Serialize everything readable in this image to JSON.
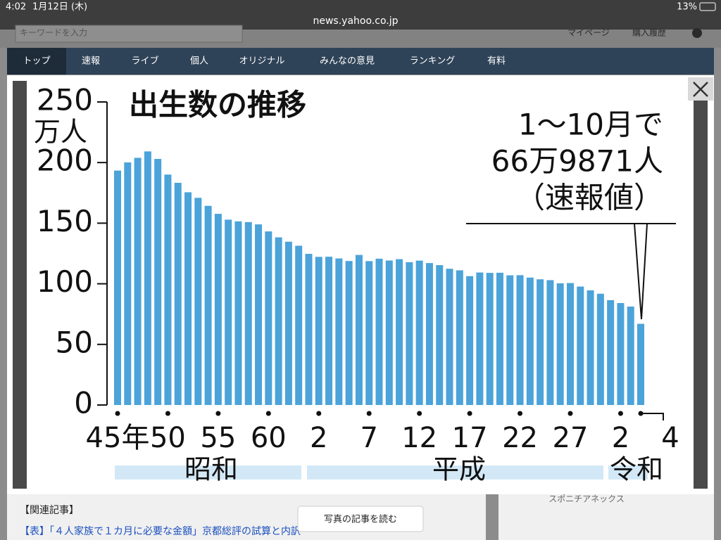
{
  "status_bar": {
    "time": "4:02",
    "date": "1月12日 (木)",
    "url": "news.yahoo.co.jp",
    "battery": "13%"
  },
  "header": {
    "search_placeholder": "キーワードを入力",
    "links": [
      "マイページ",
      "購入履歴"
    ]
  },
  "nav": [
    "トップ",
    "速報",
    "ライブ",
    "個人",
    "オリジナル",
    "みんなの意見",
    "ランキング",
    "有料"
  ],
  "chart_data": {
    "type": "bar",
    "title": "出生数の推移",
    "y_unit": "万人",
    "categories": [
      "45年",
      null,
      null,
      null,
      null,
      "50",
      null,
      null,
      null,
      null,
      "55",
      null,
      null,
      null,
      null,
      "60",
      null,
      null,
      null,
      null,
      "2",
      null,
      null,
      null,
      null,
      "7",
      null,
      null,
      null,
      null,
      "12",
      null,
      null,
      null,
      null,
      "17",
      null,
      null,
      null,
      null,
      "22",
      null,
      null,
      null,
      null,
      "27",
      null,
      null,
      null,
      null,
      "2",
      null,
      "4"
    ],
    "values": [
      193.4,
      200.1,
      203.9,
      209.2,
      203.0,
      190.1,
      183.3,
      175.5,
      170.9,
      164.3,
      157.7,
      152.9,
      151.5,
      150.9,
      149.0,
      143.2,
      138.3,
      134.7,
      131.4,
      124.7,
      122.2,
      122.3,
      120.9,
      118.8,
      123.8,
      118.7,
      120.7,
      119.2,
      120.3,
      117.8,
      119.1,
      117.1,
      115.4,
      112.4,
      111.1,
      106.3,
      109.3,
      109.0,
      109.1,
      107.0,
      107.1,
      105.1,
      103.7,
      103.0,
      100.4,
      100.6,
      97.7,
      94.6,
      91.8,
      86.5,
      84.1,
      81.2,
      66.9871
    ],
    "color": "#4ba3d9",
    "ylim": [
      0,
      250
    ],
    "yticks": [
      0,
      50,
      100,
      150,
      200,
      250
    ],
    "eras": [
      "昭和",
      "平成",
      "令和"
    ],
    "annotation": [
      "1～10月で",
      "66万9871人",
      "（速報値）"
    ]
  },
  "footer": {
    "related_heading": "【関連記事】",
    "related_link": "【表】「４人家族で１カ月に必要な金額」京都総評の試算と内訳",
    "button": "写真の記事を読む",
    "side_source": "スポニチアネックス"
  }
}
